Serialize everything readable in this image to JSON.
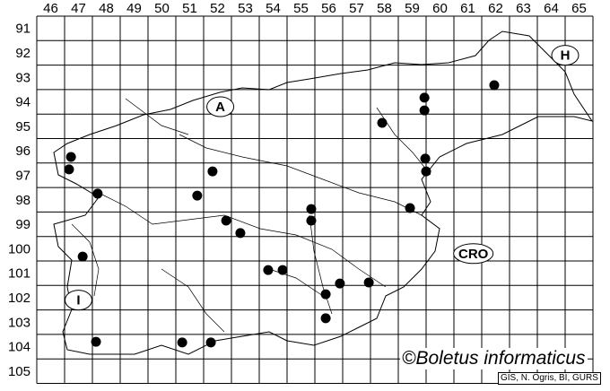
{
  "map": {
    "grid": {
      "columns": [
        "46",
        "47",
        "48",
        "49",
        "50",
        "51",
        "52",
        "53",
        "54",
        "55",
        "56",
        "57",
        "58",
        "59",
        "60",
        "61",
        "62",
        "63",
        "64",
        "65"
      ],
      "rows": [
        "91",
        "92",
        "93",
        "94",
        "95",
        "96",
        "97",
        "98",
        "99",
        "100",
        "101",
        "102",
        "103",
        "104",
        "105"
      ]
    },
    "region_labels": [
      {
        "text": "A",
        "col": 52.6,
        "row": 94.7
      },
      {
        "text": "H",
        "col": 65.0,
        "row": 92.6
      },
      {
        "text": "CRO",
        "col": 61.7,
        "row": 100.7
      },
      {
        "text": "I",
        "col": 47.5,
        "row": 102.6
      }
    ],
    "records": [
      {
        "col": 47.23,
        "row": 96.75
      },
      {
        "col": 47.16,
        "row": 97.26
      },
      {
        "col": 48.19,
        "row": 98.25
      },
      {
        "col": 47.65,
        "row": 100.82
      },
      {
        "col": 48.13,
        "row": 104.3
      },
      {
        "col": 51.23,
        "row": 104.33
      },
      {
        "col": 52.26,
        "row": 104.33
      },
      {
        "col": 52.32,
        "row": 97.34
      },
      {
        "col": 51.77,
        "row": 98.33
      },
      {
        "col": 52.81,
        "row": 99.35
      },
      {
        "col": 53.32,
        "row": 99.86
      },
      {
        "col": 54.32,
        "row": 101.37
      },
      {
        "col": 54.84,
        "row": 101.37
      },
      {
        "col": 55.87,
        "row": 98.88
      },
      {
        "col": 55.87,
        "row": 99.35
      },
      {
        "col": 56.39,
        "row": 102.36
      },
      {
        "col": 56.9,
        "row": 101.92
      },
      {
        "col": 57.94,
        "row": 101.88
      },
      {
        "col": 56.39,
        "row": 103.34
      },
      {
        "col": 58.42,
        "row": 95.36
      },
      {
        "col": 59.94,
        "row": 94.33
      },
      {
        "col": 59.94,
        "row": 94.85
      },
      {
        "col": 59.97,
        "row": 96.82
      },
      {
        "col": 60.0,
        "row": 97.34
      },
      {
        "col": 59.42,
        "row": 98.84
      },
      {
        "col": 62.45,
        "row": 93.82
      }
    ],
    "record_color": "#000000"
  },
  "watermark": "©Boletus informaticus",
  "credit": "GIS, N. Ogris, BI, GURS"
}
